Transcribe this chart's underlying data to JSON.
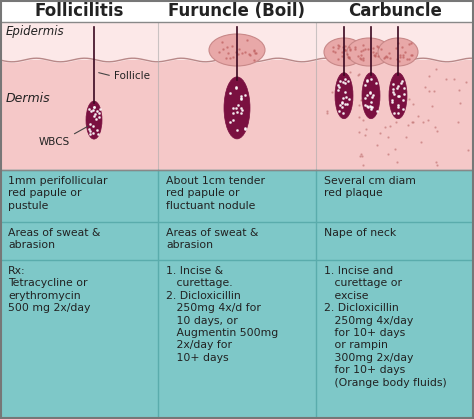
{
  "title_follicilitis": "Follicilitis",
  "title_furuncle": "Furuncle (Boil)",
  "title_carbuncle": "Carbuncle",
  "epidermis_label": "Epidermis",
  "dermis_label": "Dermis",
  "follicle_label": "Follicle",
  "wbcs_label": "WBCS",
  "skin_bg": "#f5c8c8",
  "skin_pale": "#fce8e8",
  "table_bg": "#7ec8c8",
  "table_border": "#5aacac",
  "follicle_color": "#7a1040",
  "swelling_color": "#e8a8a8",
  "swelling_edge": "#c88888",
  "hair_color": "#3a0820",
  "dot_color": "#d4608080",
  "row1_col1": "1mm perifollicular\nred papule or\npustule",
  "row1_col2": "About 1cm tender\nred papule or\nfluctuant nodule",
  "row1_col3": "Several cm diam\nred plaque",
  "row2_col1": "Areas of sweat &\nabrasion",
  "row2_col2": "Areas of sweat &\nabrasion",
  "row2_col3": "Nape of neck",
  "row3_col1": "Rx:\nTetracycline or\nerythromycin\n500 mg 2x/day",
  "row3_col2": "1. Incise &\n   curettage.\n2. Dicloxicillin\n   250mg 4x/d for\n   10 days, or\n   Augmentin 500mg\n   2x/day for\n   10+ days",
  "row3_col3": "1. Incise and\n   curettage or\n   excise\n2. Dicloxicillin\n   250mg 4x/day\n   for 10+ days\n   or rampin\n   300mg 2x/day\n   for 10+ days\n   (Orange body fluids)",
  "bg_color": "#ffffff",
  "text_color": "#222222",
  "title_fontsize": 12,
  "cell_fontsize": 7.8,
  "label_fontsize": 7.5
}
